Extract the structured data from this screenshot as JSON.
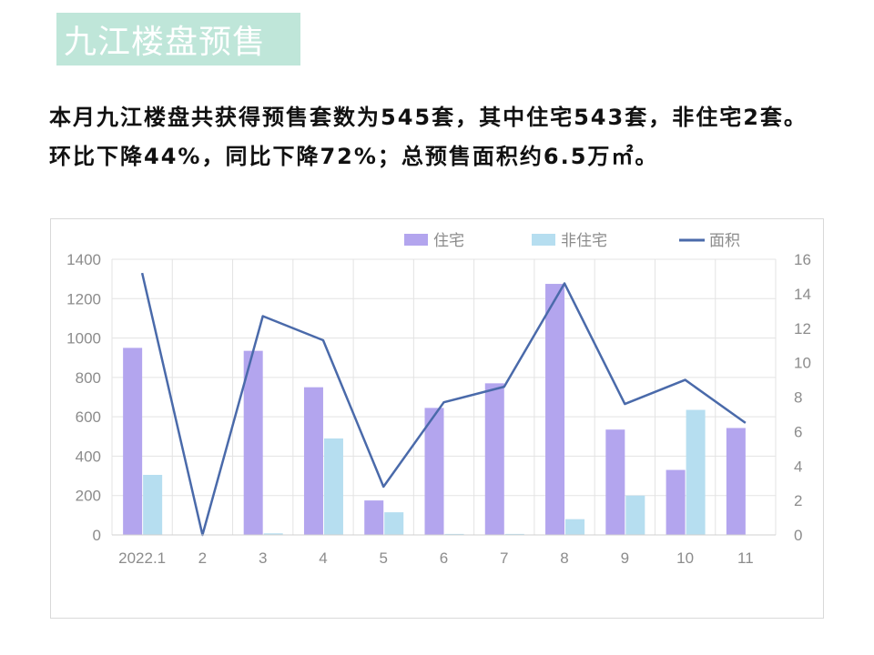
{
  "header": {
    "title": "九江楼盘预售"
  },
  "summary": {
    "text": "本月九江楼盘共获得预售套数为545套，其中住宅543套，非住宅2套。环比下降44%，同比下降72%；总预售面积约6.5万㎡。"
  },
  "colors": {
    "residential": "#b3a5ee",
    "non_residential": "#b6def0",
    "area_line": "#4a6aaa",
    "banner": "#bfe6d9"
  },
  "chart_data": {
    "type": "bar",
    "categories": [
      "2022.1",
      "2",
      "3",
      "4",
      "5",
      "6",
      "7",
      "8",
      "9",
      "10",
      "11"
    ],
    "series": [
      {
        "name": "住宅",
        "type": "bar",
        "axis": "left",
        "values": [
          950,
          0,
          935,
          750,
          175,
          645,
          770,
          1275,
          535,
          330,
          543
        ]
      },
      {
        "name": "非住宅",
        "type": "bar",
        "axis": "left",
        "values": [
          305,
          0,
          8,
          490,
          115,
          5,
          5,
          80,
          200,
          635,
          2
        ]
      },
      {
        "name": "面积",
        "type": "line",
        "axis": "right",
        "values": [
          15.2,
          0,
          12.7,
          11.3,
          2.8,
          7.7,
          8.6,
          14.6,
          7.6,
          9.0,
          6.5
        ]
      }
    ],
    "ylim": [
      0,
      1400
    ],
    "y_ticks": [
      "0",
      "200",
      "400",
      "600",
      "800",
      "1000",
      "1200",
      "1400"
    ],
    "y2lim": [
      0,
      16
    ],
    "y2_ticks": [
      "0",
      "2",
      "4",
      "6",
      "8",
      "10",
      "12",
      "14",
      "16"
    ],
    "legend_position": "top-right",
    "grid": true
  }
}
